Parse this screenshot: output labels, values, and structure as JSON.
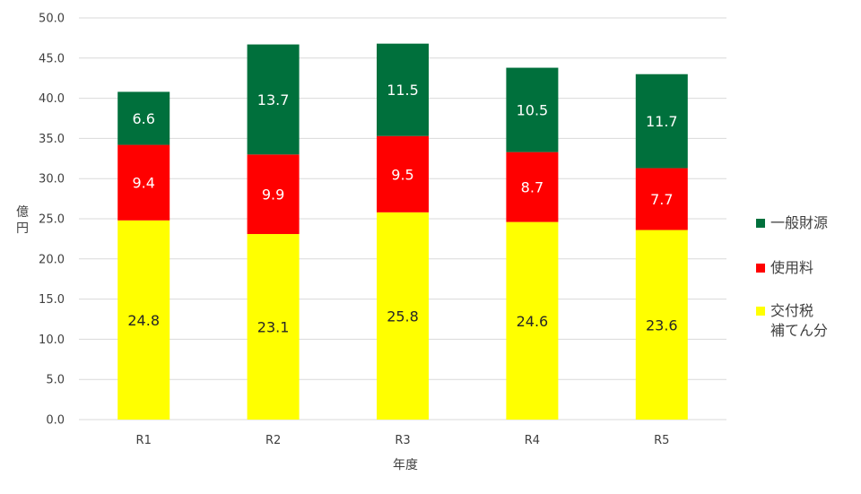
{
  "chart_data": {
    "type": "bar",
    "stacked": true,
    "categories": [
      "R1",
      "R2",
      "R3",
      "R4",
      "R5"
    ],
    "series": [
      {
        "name": "交付税\n補てん分",
        "color": "#FFFF00",
        "label_color": "#262626",
        "values": [
          24.8,
          23.1,
          25.8,
          24.6,
          23.6
        ]
      },
      {
        "name": "使用料",
        "color": "#FF0000",
        "label_color": "#FFFFFF",
        "values": [
          9.4,
          9.9,
          9.5,
          8.7,
          7.7
        ]
      },
      {
        "name": "一般財源",
        "color": "#00703C",
        "label_color": "#FFFFFF",
        "values": [
          6.6,
          13.7,
          11.5,
          10.5,
          11.7
        ]
      }
    ],
    "xlabel": "年度",
    "ylabel": "億円",
    "ylim": [
      0,
      50
    ],
    "ytick_step": 5,
    "ytick_labels": [
      "0.0",
      "5.0",
      "10.0",
      "15.0",
      "20.0",
      "25.0",
      "30.0",
      "35.0",
      "40.0",
      "45.0",
      "50.0"
    ],
    "grid": true,
    "legend": "right",
    "legend_order": [
      "一般財源",
      "使用料",
      "交付税\n補てん分"
    ]
  }
}
